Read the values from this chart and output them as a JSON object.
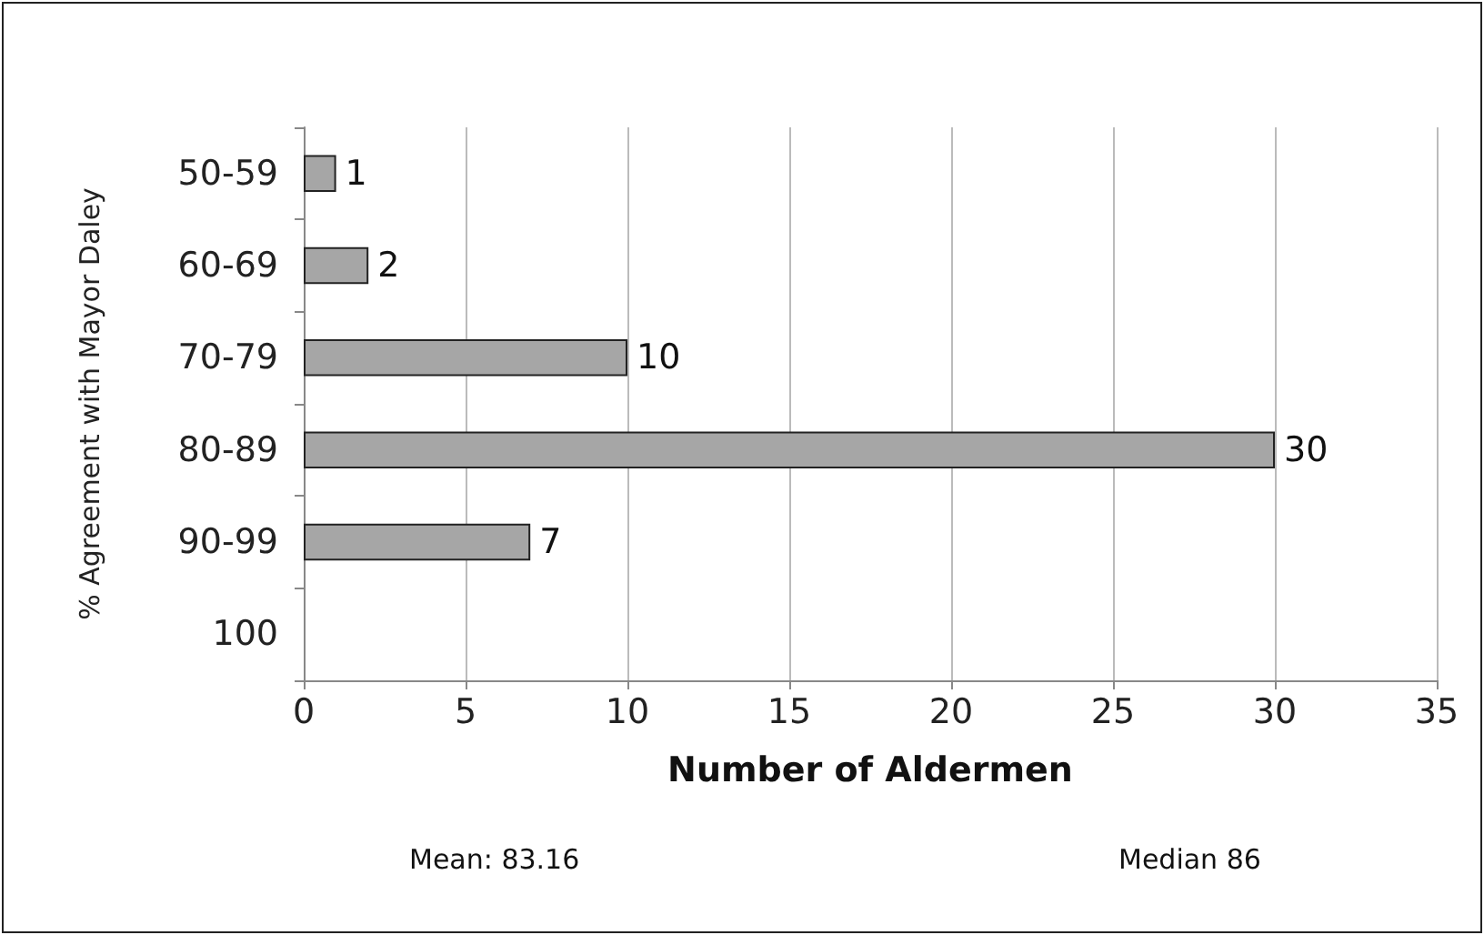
{
  "chart_data": {
    "type": "bar",
    "orientation": "horizontal",
    "xlabel": "Number of Aldermen",
    "ylabel": "% Agreement with Mayor Daley",
    "categories": [
      "50-59",
      "60-69",
      "70-79",
      "80-89",
      "90-99",
      "100"
    ],
    "values": [
      1,
      2,
      10,
      30,
      7,
      null
    ],
    "color": "#a6a6a6",
    "value_labels": [
      "1",
      "2",
      "10",
      "30",
      "7",
      null
    ],
    "xlim": [
      0,
      35
    ],
    "xticks": [
      0,
      5,
      10,
      15,
      20,
      25,
      30,
      35
    ],
    "grid": "x",
    "annotations": [
      "Mean: 83.16",
      "Median 86"
    ]
  }
}
